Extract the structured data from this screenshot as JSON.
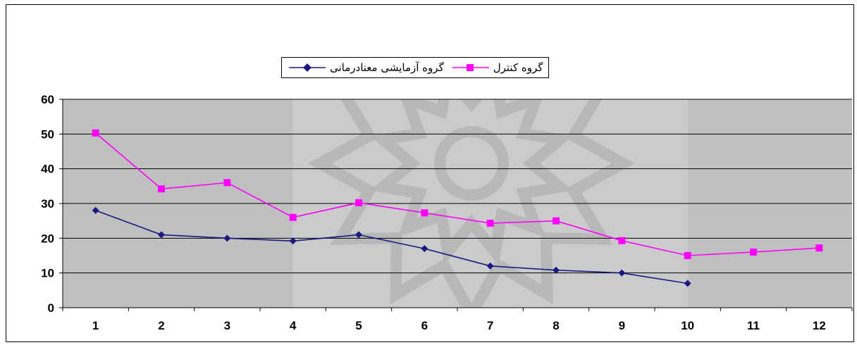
{
  "chart_data": {
    "type": "line",
    "categories": [
      "1",
      "2",
      "3",
      "4",
      "5",
      "6",
      "7",
      "8",
      "9",
      "10",
      "11",
      "12"
    ],
    "series": [
      {
        "name": "گروه آزمایشی معنادرمانی",
        "color": "#1a1a80",
        "marker": "diamond",
        "values": [
          28,
          21,
          20,
          19.2,
          21,
          17,
          12,
          10.8,
          10,
          7,
          null,
          null
        ]
      },
      {
        "name": "گروه کنترل",
        "color": "#ff00ff",
        "marker": "square",
        "values": [
          50.3,
          34.2,
          36,
          26,
          30.2,
          27.3,
          24.3,
          25,
          19.3,
          15,
          16,
          17.2
        ]
      }
    ],
    "yticks": [
      "0",
      "10",
      "20",
      "30",
      "40",
      "50",
      "60"
    ],
    "ylim": [
      0,
      60
    ],
    "grid": true,
    "legend_position": "top-center"
  }
}
